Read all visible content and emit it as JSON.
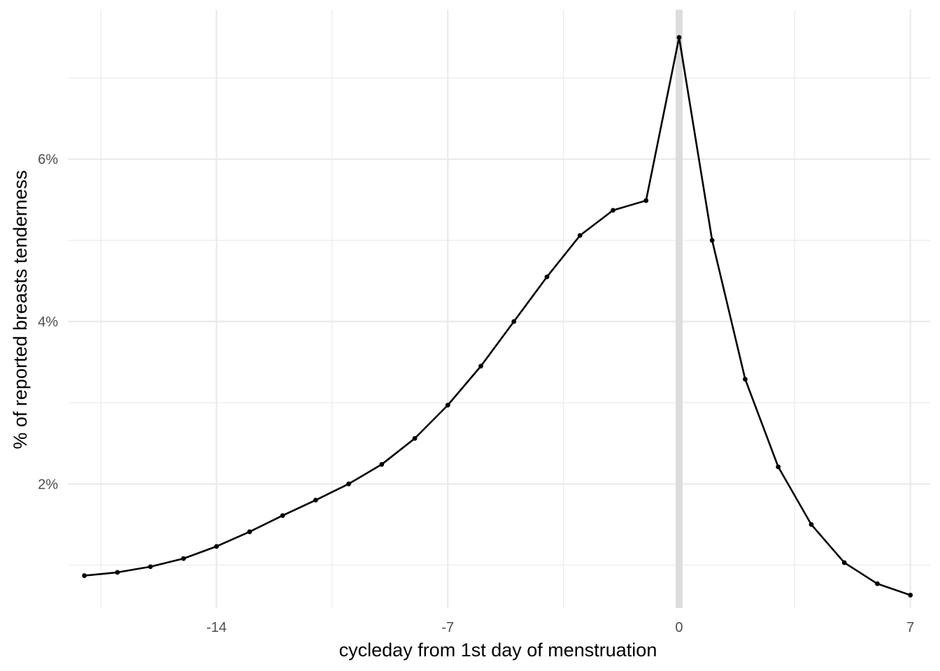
{
  "chart_data": {
    "type": "line",
    "title": "",
    "xlabel": "cycleday from 1st day of menstruation",
    "ylabel": "% of reported breasts tenderness",
    "x": [
      -18,
      -17,
      -16,
      -15,
      -14,
      -13,
      -12,
      -11,
      -10,
      -9,
      -8,
      -7,
      -6,
      -5,
      -4,
      -3,
      -2,
      -1,
      0,
      1,
      2,
      3,
      4,
      5,
      6,
      7
    ],
    "series": [
      {
        "values": [
          0.87,
          0.91,
          0.98,
          1.08,
          1.23,
          1.41,
          1.61,
          1.8,
          2.0,
          2.24,
          2.56,
          2.97,
          3.45,
          4.0,
          4.55,
          5.06,
          5.37,
          5.49,
          7.5,
          5.0,
          3.29,
          2.21,
          1.5,
          1.03,
          0.77,
          0.63
        ]
      }
    ],
    "xlim": [
      -18.5,
      7.6
    ],
    "ylim": [
      0.47,
      7.84
    ],
    "x_ticks": [
      -14,
      -7,
      0,
      7
    ],
    "x_tick_labels": [
      "-14",
      "-7",
      "0",
      "7"
    ],
    "x_minor_ticks": [
      -17.5,
      -10.5,
      -3.5,
      3.5
    ],
    "y_ticks": [
      2,
      4,
      6
    ],
    "y_tick_labels": [
      "2%",
      "4%",
      "6%"
    ],
    "y_minor_ticks": [
      1,
      3,
      5,
      7
    ],
    "reference_line_x": 0,
    "grid": true,
    "legend": "none",
    "colors": {
      "line": "#000000",
      "points": "#000000",
      "grid_major": "#ebebeb",
      "grid_minor": "#ebebeb",
      "reference_line": "#dddddd",
      "tick_text": "#4d4d4d",
      "axis_title": "#000000"
    }
  }
}
